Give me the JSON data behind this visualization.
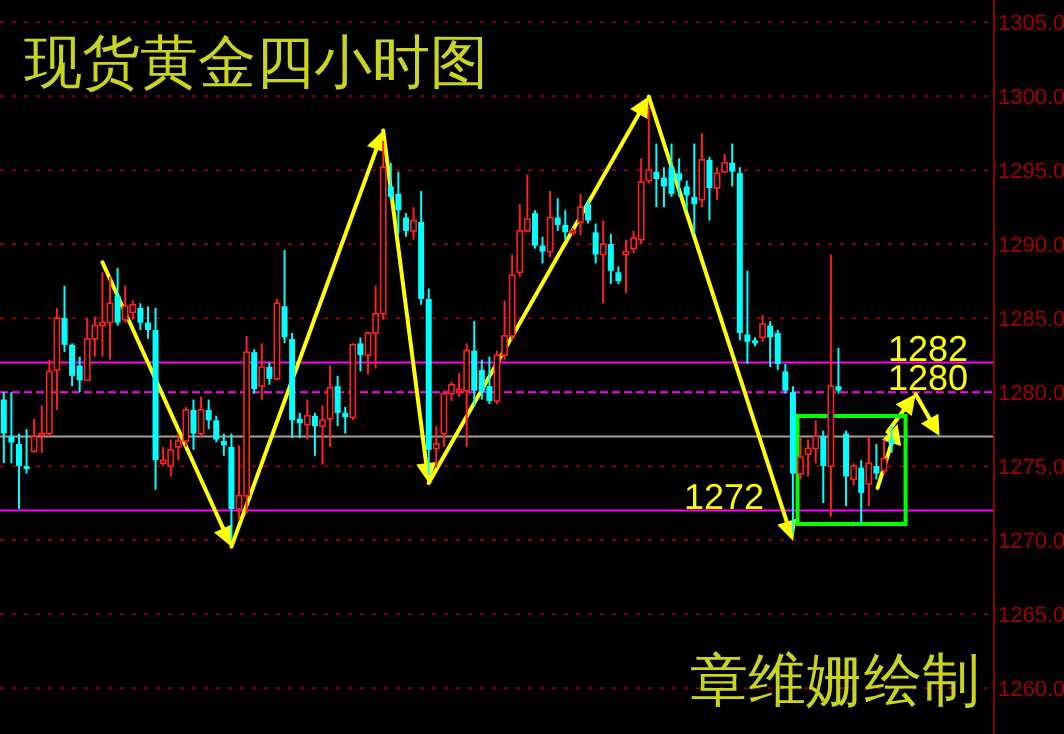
{
  "chart_data": {
    "type": "candlestick",
    "title": "现货黄金四小时图",
    "annotations": [
      "章维姗绘制",
      {
        "text": "1282",
        "y": 1282
      },
      {
        "text": "1280",
        "y": 1280
      },
      {
        "text": "1272",
        "y": 1272
      }
    ],
    "categories": [
      null,
      null,
      null,
      null,
      null,
      null,
      null,
      null,
      null,
      null,
      null,
      null,
      null,
      null,
      null,
      null,
      null,
      null,
      null,
      null,
      null,
      null,
      null,
      null,
      null,
      null,
      null,
      null,
      null,
      null,
      null,
      null,
      null,
      null,
      null,
      null,
      null,
      null,
      null,
      null,
      null,
      null,
      null,
      null,
      null,
      null,
      null,
      null,
      null,
      null,
      null,
      null,
      null,
      null,
      null,
      null,
      null,
      null,
      null,
      null,
      null,
      null,
      null,
      null,
      null,
      null,
      null,
      null,
      null,
      null,
      null,
      null,
      null,
      null,
      null,
      null,
      null,
      null,
      null,
      null,
      null,
      null,
      null,
      null,
      null,
      null,
      null,
      null,
      null,
      null,
      null,
      null,
      null,
      null,
      null,
      null,
      null,
      null,
      null,
      null,
      null,
      null,
      null,
      null,
      null,
      null,
      null,
      null,
      null,
      null,
      null,
      null,
      null,
      null,
      null,
      null,
      null,
      null,
      null,
      null,
      null,
      null,
      null,
      null,
      null,
      null,
      null,
      null,
      null,
      null,
      null
    ],
    "ohlc": [
      [
        1279.5,
        1280.0,
        1275.2,
        1277.2
      ],
      [
        1277.0,
        1280.0,
        1275.2,
        1276.6
      ],
      [
        1276.5,
        1277.2,
        1272.1,
        1275.0
      ],
      [
        1275.0,
        1277.5,
        1274.5,
        1274.8
      ],
      [
        1276.0,
        1278.2,
        1275.9,
        1277.0
      ],
      [
        1277.1,
        1279.1,
        1275.9,
        1277.2
      ],
      [
        1277.2,
        1282.2,
        1277.0,
        1281.4
      ],
      [
        1281.5,
        1285.7,
        1278.8,
        1285.0
      ],
      [
        1285.0,
        1287.2,
        1282.7,
        1283.2
      ],
      [
        1283.2,
        1283.3,
        1280.4,
        1281.1
      ],
      [
        1281.8,
        1282.4,
        1280.0,
        1280.8
      ],
      [
        1280.8,
        1285.0,
        1280.8,
        1283.6
      ],
      [
        1283.6,
        1285.1,
        1282.4,
        1284.5
      ],
      [
        1284.5,
        1288.1,
        1282.4,
        1284.7
      ],
      [
        1284.7,
        1287.8,
        1282.2,
        1286.0
      ],
      [
        1286.5,
        1288.4,
        1284.5,
        1284.7
      ],
      [
        1284.9,
        1287.2,
        1284.7,
        1285.8
      ],
      [
        1285.4,
        1286.2,
        1284.9,
        1285.9
      ],
      [
        1285.7,
        1286.0,
        1284.2,
        1284.7
      ],
      [
        1284.7,
        1285.8,
        1283.6,
        1284.2
      ],
      [
        1284.2,
        1285.7,
        1273.4,
        1275.4
      ],
      [
        1275.2,
        1276.3,
        1275.0,
        1275.4
      ],
      [
        1275.0,
        1276.8,
        1274.3,
        1276.1
      ],
      [
        1276.3,
        1277.2,
        1275.4,
        1276.7
      ],
      [
        1276.7,
        1279.0,
        1276.3,
        1278.8
      ],
      [
        1278.8,
        1279.5,
        1276.1,
        1277.2
      ],
      [
        1277.2,
        1279.7,
        1277.0,
        1278.8
      ],
      [
        1278.8,
        1279.5,
        1277.5,
        1278.1
      ],
      [
        1278.1,
        1278.4,
        1276.6,
        1276.8
      ],
      [
        1276.7,
        1277.2,
        1275.7,
        1276.4
      ],
      [
        1276.3,
        1277.2,
        1270.1,
        1272.1
      ],
      [
        1272.1,
        1276.4,
        1271.4,
        1273.0
      ],
      [
        1273.0,
        1283.8,
        1271.8,
        1282.7
      ],
      [
        1282.7,
        1282.9,
        1279.9,
        1280.2
      ],
      [
        1280.4,
        1283.3,
        1279.5,
        1281.7
      ],
      [
        1281.7,
        1282.0,
        1280.5,
        1280.9
      ],
      [
        1280.9,
        1286.3,
        1280.8,
        1286.0
      ],
      [
        1285.8,
        1289.6,
        1283.3,
        1283.7
      ],
      [
        1283.6,
        1284.0,
        1276.9,
        1278.1
      ],
      [
        1278.2,
        1278.6,
        1276.9,
        1277.9
      ],
      [
        1277.8,
        1279.5,
        1276.8,
        1278.4
      ],
      [
        1278.4,
        1278.6,
        1275.7,
        1277.7
      ],
      [
        1277.7,
        1279.1,
        1275.1,
        1278.1
      ],
      [
        1278.2,
        1281.8,
        1276.3,
        1280.3
      ],
      [
        1280.4,
        1281.1,
        1277.7,
        1278.6
      ],
      [
        1278.6,
        1279.0,
        1277.2,
        1278.3
      ],
      [
        1278.3,
        1283.3,
        1278.1,
        1283.2
      ],
      [
        1283.3,
        1283.7,
        1281.4,
        1282.5
      ],
      [
        1282.5,
        1284.1,
        1281.2,
        1284.0
      ],
      [
        1284.0,
        1287.2,
        1281.6,
        1285.3
      ],
      [
        1285.3,
        1297.0,
        1284.9,
        1295.2
      ],
      [
        1293.9,
        1295.5,
        1293.0,
        1293.2
      ],
      [
        1293.4,
        1294.9,
        1290.7,
        1292.3
      ],
      [
        1291.8,
        1292.1,
        1290.5,
        1290.9
      ],
      [
        1290.9,
        1292.5,
        1290.3,
        1291.6
      ],
      [
        1291.5,
        1293.6,
        1285.9,
        1286.3
      ],
      [
        1286.3,
        1287.0,
        1274.4,
        1276.1
      ],
      [
        1276.2,
        1277.7,
        1274.9,
        1276.5
      ],
      [
        1277.2,
        1280.1,
        1276.3,
        1279.9
      ],
      [
        1279.9,
        1280.7,
        1279.4,
        1280.5
      ],
      [
        1280.1,
        1281.3,
        1279.7,
        1280.2
      ],
      [
        1280.1,
        1283.3,
        1276.3,
        1282.8
      ],
      [
        1282.8,
        1284.8,
        1279.0,
        1280.1
      ],
      [
        1281.5,
        1282.2,
        1279.5,
        1280.0
      ],
      [
        1280.4,
        1282.4,
        1279.2,
        1279.4
      ],
      [
        1279.4,
        1282.8,
        1279.2,
        1282.5
      ],
      [
        1282.5,
        1286.2,
        1282.2,
        1283.8
      ],
      [
        1283.8,
        1289.3,
        1283.5,
        1287.9
      ],
      [
        1288.1,
        1292.7,
        1287.8,
        1290.9
      ],
      [
        1290.9,
        1294.7,
        1290.8,
        1291.7
      ],
      [
        1292.1,
        1292.3,
        1289.7,
        1289.9
      ],
      [
        1289.9,
        1290.5,
        1288.7,
        1289.5
      ],
      [
        1289.5,
        1293.6,
        1289.1,
        1291.8
      ],
      [
        1291.8,
        1293.1,
        1290.9,
        1291.3
      ],
      [
        1291.3,
        1292.3,
        1290.3,
        1290.8
      ],
      [
        1290.8,
        1291.1,
        1290.6,
        1290.9
      ],
      [
        1291.5,
        1293.4,
        1290.6,
        1292.5
      ],
      [
        1292.7,
        1293.0,
        1291.4,
        1291.6
      ],
      [
        1290.8,
        1291.4,
        1288.7,
        1289.3
      ],
      [
        1289.3,
        1291.6,
        1286.0,
        1290.0
      ],
      [
        1290.0,
        1290.7,
        1287.3,
        1288.2
      ],
      [
        1288.1,
        1288.5,
        1287.3,
        1287.5
      ],
      [
        1289.3,
        1290.3,
        1286.7,
        1289.5
      ],
      [
        1289.7,
        1290.9,
        1289.4,
        1290.4
      ],
      [
        1290.3,
        1295.8,
        1290.0,
        1294.2
      ],
      [
        1294.3,
        1299.3,
        1294.1,
        1295.0
      ],
      [
        1294.9,
        1296.8,
        1292.5,
        1294.4
      ],
      [
        1294.5,
        1295.2,
        1292.5,
        1293.9
      ],
      [
        1295.2,
        1296.8,
        1293.2,
        1293.4
      ],
      [
        1294.8,
        1295.8,
        1293.2,
        1294.3
      ],
      [
        1293.9,
        1294.3,
        1292.3,
        1293.3
      ],
      [
        1293.2,
        1296.8,
        1290.7,
        1292.7
      ],
      [
        1293.0,
        1297.5,
        1292.5,
        1295.7
      ],
      [
        1295.7,
        1295.9,
        1291.6,
        1293.8
      ],
      [
        1293.8,
        1295.2,
        1293.0,
        1294.8
      ],
      [
        1294.9,
        1296.1,
        1294.8,
        1295.5
      ],
      [
        1295.5,
        1296.8,
        1293.9,
        1294.9
      ],
      [
        1294.8,
        1295.2,
        1283.5,
        1284.0
      ],
      [
        1283.9,
        1288.2,
        1281.9,
        1283.4
      ],
      [
        1283.5,
        1283.7,
        1283.1,
        1283.3
      ],
      [
        1283.7,
        1285.2,
        1283.4,
        1284.6
      ],
      [
        1284.5,
        1284.8,
        1281.7,
        1283.7
      ],
      [
        1284.0,
        1284.2,
        1281.5,
        1281.9
      ],
      [
        1281.4,
        1281.9,
        1279.9,
        1280.1
      ],
      [
        1280.0,
        1280.4,
        1270.5,
        1274.5
      ],
      [
        1274.5,
        1277.0,
        1274.1,
        1275.6
      ],
      [
        1275.8,
        1276.8,
        1274.3,
        1276.2
      ],
      [
        1276.2,
        1278.1,
        1275.2,
        1277.0
      ],
      [
        1277.0,
        1277.4,
        1272.5,
        1275.0
      ],
      [
        1275.0,
        1289.3,
        1271.6,
        1280.4
      ],
      [
        1280.4,
        1283.0,
        1279.9,
        1280.1
      ],
      [
        1277.2,
        1277.4,
        1272.3,
        1274.3
      ],
      [
        1274.1,
        1275.2,
        1273.7,
        1275.0
      ],
      [
        1274.9,
        1275.4,
        1271.1,
        1273.2
      ],
      [
        1273.8,
        1277.0,
        1272.3,
        1275.2
      ],
      [
        1275.0,
        1276.5,
        1274.1,
        1274.5
      ],
      [
        1274.7,
        1276.8,
        1274.5,
        1275.5
      ],
      [
        1276.8,
        1277.7,
        1275.9,
        1276.5
      ],
      null,
      null,
      null,
      null,
      null,
      null,
      null,
      null,
      null,
      null,
      null,
      null,
      null
    ],
    "ylim": [
      1256.9,
      1306.5
    ],
    "yticks": [
      {
        "value": 1260,
        "label": "1260.0"
      },
      {
        "value": 1265,
        "label": "1265.0"
      },
      {
        "value": 1270,
        "label": "1270.0"
      },
      {
        "value": 1275,
        "label": "1275.0"
      },
      {
        "value": 1280,
        "label": "1280.0"
      },
      {
        "value": 1285,
        "label": "1285.0"
      },
      {
        "value": 1290,
        "label": "1290.0"
      },
      {
        "value": 1295,
        "label": "1295.0"
      },
      {
        "value": 1300,
        "label": "1300.0"
      },
      {
        "value": 1305,
        "label": "1305.0"
      }
    ],
    "grid": "y",
    "tick_labels": "y",
    "ref_lines": [
      {
        "axis": "y",
        "value": 1282,
        "color": "#ff00ff"
      },
      {
        "axis": "y",
        "value": 1280,
        "color": "#ff00ff",
        "line_style": "dashed"
      },
      {
        "axis": "y",
        "value": 1272,
        "color": "#ff00ff"
      },
      {
        "axis": "y",
        "value": 1277,
        "color": "#a0a0a0"
      }
    ]
  }
}
